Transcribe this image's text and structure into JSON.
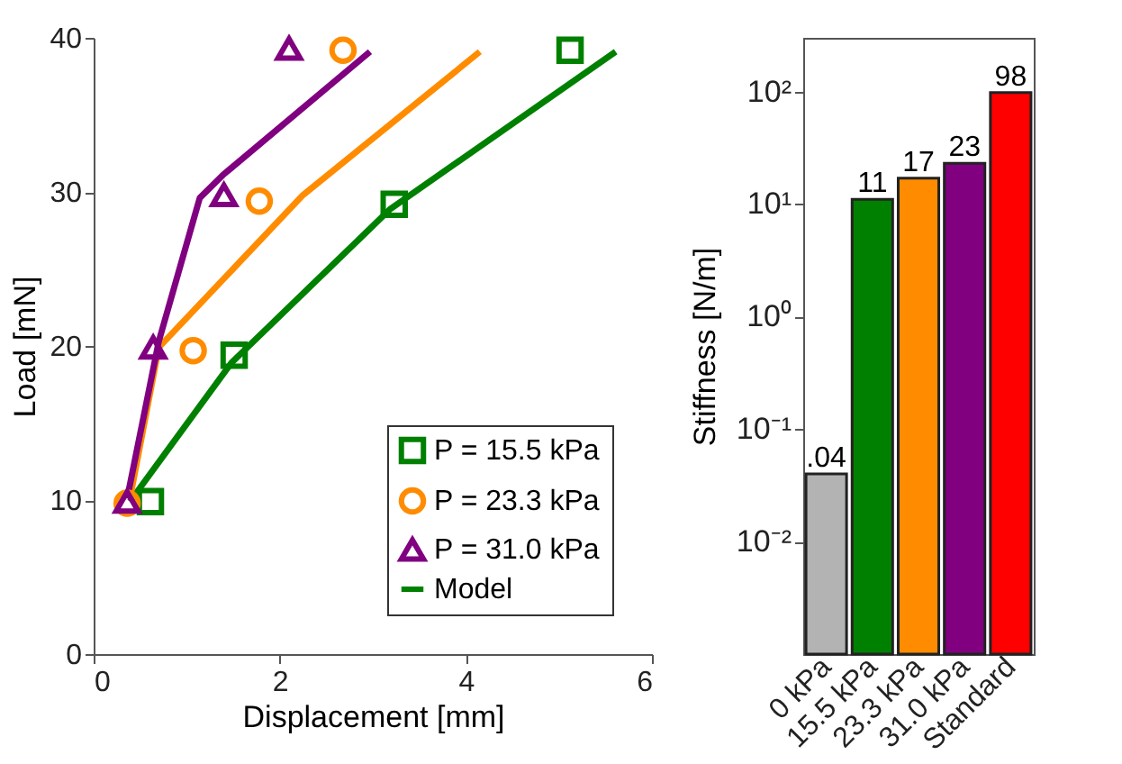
{
  "chart_data": [
    {
      "type": "scatter",
      "xlabel": "Displacement [mm]",
      "ylabel": "Load [mN]",
      "xlim": [
        0,
        6
      ],
      "xticks": [
        0,
        2,
        4,
        6
      ],
      "ylim": [
        0,
        40
      ],
      "yticks": [
        0,
        10,
        20,
        30,
        40
      ],
      "grid": false,
      "legend": "bottom right",
      "series": [
        {
          "name": "P = 15.5 kPa",
          "color": "#008000",
          "marker": "square",
          "x": [
            0.61,
            1.51,
            3.23,
            5.12
          ],
          "values": [
            9.9,
            19.4,
            29.2,
            39.2
          ]
        },
        {
          "name": "P = 23.3 kPa",
          "color": "#ff8c00",
          "marker": "circle",
          "x": [
            0.36,
            1.07,
            1.78,
            2.68
          ],
          "values": [
            9.8,
            19.7,
            29.4,
            39.2
          ]
        },
        {
          "name": "P = 31.0 kPa",
          "color": "#800080",
          "marker": "triangle",
          "x": [
            0.36,
            0.64,
            1.4,
            2.1
          ],
          "values": [
            9.9,
            19.9,
            29.8,
            39.3
          ]
        },
        {
          "name": "Model",
          "type": "line",
          "color": "#008000",
          "x": [
            0.39,
            1.48,
            3.19,
            5.61
          ],
          "values": [
            9.9,
            18.9,
            28.9,
            39.1
          ]
        },
        {
          "type": "line",
          "color": "#ff8c00",
          "x": [
            0.39,
            0.7,
            2.25,
            4.15
          ],
          "values": [
            10.1,
            19.9,
            29.8,
            39.1
          ]
        },
        {
          "type": "line",
          "color": "#800080",
          "x": [
            0.36,
            0.7,
            1.14,
            1.39,
            2.97
          ],
          "values": [
            10.1,
            20.3,
            29.6,
            31.1,
            39.1
          ]
        }
      ]
    },
    {
      "type": "bar",
      "ylabel": "Stiffness [N/m]",
      "log": true,
      "ylim": [
        0.001,
        300
      ],
      "yticks": [
        {
          "value": 0.01,
          "label": "10⁻²"
        },
        {
          "value": 0.1,
          "label": "10⁻¹"
        },
        {
          "value": 1,
          "label": "10⁰"
        },
        {
          "value": 10,
          "label": "10¹"
        },
        {
          "value": 100,
          "label": "10²"
        }
      ],
      "categories": [
        "0 kPa",
        "15.5 kPa",
        "23.3 kPa",
        "31.0 kPa",
        "Standard"
      ],
      "values": [
        0.04,
        11,
        17,
        23,
        98
      ],
      "colors": [
        "#b3b3b3",
        "#008000",
        "#ff8c00",
        "#800080",
        "#ff0000"
      ],
      "value_labels": [
        ".04",
        "11",
        "17",
        "23",
        "98"
      ]
    }
  ]
}
